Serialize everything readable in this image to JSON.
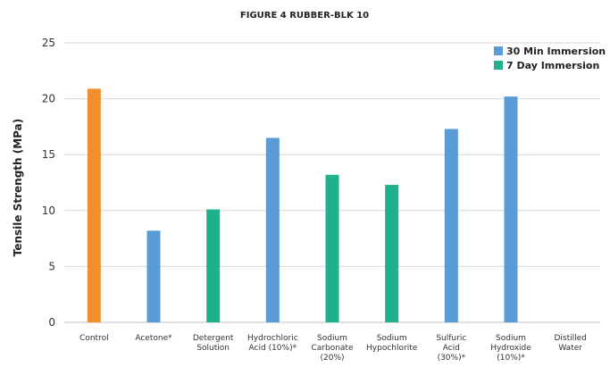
{
  "chart_data": {
    "type": "bar",
    "title": "FIGURE 4 RUBBER-BLK 10",
    "ylabel": "Tensile Strength (MPa)",
    "xlabel": "",
    "ylim": [
      0,
      25
    ],
    "yticks": [
      0,
      5,
      10,
      15,
      20,
      25
    ],
    "grid": true,
    "legend_position": "top-right",
    "categories": [
      [
        "Control"
      ],
      [
        "Acetone*"
      ],
      [
        "Detergent",
        "Solution"
      ],
      [
        "Hydrochloric",
        "Acid (10%)*"
      ],
      [
        "Sodium",
        "Carbonate",
        "(20%)"
      ],
      [
        "Sodium",
        "Hypochlorite"
      ],
      [
        "Sulfuric",
        "Acid",
        "(30%)*"
      ],
      [
        "Sodium",
        "Hydroxide",
        "(10%)*"
      ],
      [
        "Distilled",
        "Water"
      ]
    ],
    "control": {
      "category_index": 0,
      "value": 20.9,
      "color": "#f28e2b"
    },
    "series": [
      {
        "name": "30 Min Immersion",
        "color": "#5b9bd5",
        "values": [
          null,
          8.2,
          null,
          16.5,
          null,
          null,
          17.3,
          20.2,
          null
        ]
      },
      {
        "name": "7 Day Immersion",
        "color": "#21b08e",
        "values": [
          null,
          null,
          10.1,
          null,
          13.2,
          12.3,
          null,
          null,
          null
        ]
      }
    ]
  }
}
